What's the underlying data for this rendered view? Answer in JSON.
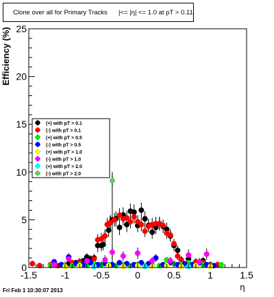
{
  "header": {
    "title": "Clone  over all for Primary Tracks",
    "title_overlap": "|<= |η| <= 1.0 at pT > 0.11"
  },
  "footer": {
    "timestamp": "Fri Feb  1 10:30:07 2013"
  },
  "colors": {
    "black": "#000000",
    "red": "#ff0000",
    "green": "#00ee00",
    "blue": "#0000ff",
    "yellow": "#ffff00",
    "magenta": "#ff00ff",
    "cyan": "#00ffff",
    "lightgreen": "#66cc66"
  },
  "chart_data": {
    "type": "scatter",
    "title": "Clone  over all for Primary Tracks",
    "xlabel": "η",
    "ylabel": "Efficiency (%)",
    "xlim": [
      -1.5,
      1.5
    ],
    "ylim": [
      0,
      25
    ],
    "xticks": [
      -1.5,
      -1,
      -0.5,
      0,
      0.5,
      1,
      1.5
    ],
    "xtick_labels": [
      "-1.5",
      "-1",
      "-0.5",
      "0",
      "0.5",
      "1",
      "1.5"
    ],
    "yticks": [
      0,
      5,
      10,
      15,
      20,
      25
    ],
    "ytick_labels": [
      "0",
      "5",
      "10",
      "15",
      "20",
      "25"
    ],
    "grid": false,
    "legend_position": "middle-left",
    "series": [
      {
        "name": "(+) with pT > 0.1",
        "color": "#000000",
        "x": [
          -1.05,
          -0.95,
          -0.85,
          -0.8,
          -0.75,
          -0.7,
          -0.65,
          -0.6,
          -0.55,
          -0.5,
          -0.475,
          -0.45,
          -0.4,
          -0.375,
          -0.35,
          -0.3,
          -0.25,
          -0.2,
          -0.15,
          -0.1,
          -0.05,
          0,
          0.05,
          0.1,
          0.15,
          0.2,
          0.25,
          0.3,
          0.35,
          0.4,
          0.45,
          0.5,
          0.55,
          0.6,
          0.7,
          0.8,
          0.9
        ],
        "y": [
          0.3,
          0.4,
          0.5,
          0.6,
          0.7,
          1.1,
          0.9,
          1.0,
          2.3,
          2.3,
          2.4,
          3.3,
          3.9,
          4.7,
          5.0,
          5.1,
          4.2,
          5.5,
          4.5,
          5.9,
          5.8,
          4.4,
          6.0,
          5.1,
          4.4,
          3.7,
          4.2,
          4.6,
          4.3,
          4.0,
          3.3,
          2.3,
          1.8,
          0.8,
          0.9,
          0.4,
          0.7
        ],
        "yerr": [
          0.3,
          0.3,
          0.3,
          0.3,
          0.3,
          0.4,
          0.4,
          0.4,
          0.7,
          0.6,
          0.6,
          0.7,
          0.7,
          0.8,
          5.0,
          0.8,
          0.8,
          0.8,
          0.8,
          0.8,
          0.8,
          0.7,
          0.8,
          0.8,
          0.7,
          0.7,
          0.7,
          0.7,
          0.7,
          0.7,
          0.6,
          0.6,
          0.5,
          0.4,
          0.4,
          0.3,
          0.4
        ]
      },
      {
        "name": "(-) with pT > 0.1",
        "color": "#ff0000",
        "x": [
          -1.45,
          -1.35,
          -1.2,
          -1.1,
          -0.9,
          -0.8,
          -0.7,
          -0.6,
          -0.55,
          -0.5,
          -0.45,
          -0.42,
          -0.38,
          -0.32,
          -0.25,
          -0.2,
          -0.15,
          -0.1,
          -0.05,
          0,
          0.05,
          0.1,
          0.15,
          0.2,
          0.25,
          0.3,
          0.35,
          0.4,
          0.45,
          0.5,
          0.55,
          0.6,
          0.8,
          0.9,
          1.0,
          1.1
        ],
        "y": [
          0.4,
          0.2,
          0.3,
          0.2,
          0.5,
          0.6,
          0.3,
          0.9,
          2.9,
          3.0,
          3.3,
          4.5,
          4.7,
          5.0,
          5.5,
          5.1,
          5.2,
          4.8,
          5.3,
          4.8,
          4.5,
          3.8,
          4.3,
          4.5,
          4.6,
          4.6,
          4.4,
          3.6,
          3.4,
          2.5,
          1.2,
          0.8,
          0.6,
          0.5,
          0.3,
          0.3
        ],
        "yerr": [
          0.3,
          0.3,
          0.3,
          0.3,
          0.3,
          0.4,
          0.3,
          0.5,
          0.6,
          0.6,
          0.6,
          0.7,
          0.7,
          0.7,
          0.7,
          0.7,
          0.7,
          0.7,
          0.7,
          0.7,
          0.7,
          0.6,
          0.6,
          0.7,
          0.7,
          0.7,
          0.6,
          0.6,
          0.6,
          0.5,
          0.4,
          0.4,
          0.4,
          0.3,
          0.3,
          0.3
        ]
      },
      {
        "name": "(+) with pT > 0.5",
        "color": "#00ee00",
        "x": [
          -1.2,
          -1.05,
          -0.9,
          -0.8,
          -0.7,
          -0.6,
          -0.5,
          -0.4,
          -0.3,
          -0.2,
          -0.1,
          0,
          0.1,
          0.2,
          0.3,
          0.4,
          0.5,
          0.6,
          0.7,
          0.8,
          0.9,
          1.0,
          1.15
        ],
        "y": [
          0.2,
          0.3,
          0.2,
          0.3,
          0.2,
          0.4,
          0.3,
          0.3,
          0.2,
          0.3,
          0.2,
          0.3,
          0.2,
          0.3,
          0.2,
          0.8,
          0.4,
          0.3,
          0.5,
          0.2,
          0.3,
          0.2,
          0.3
        ],
        "yerr": [
          0.2,
          0.2,
          0.2,
          0.2,
          0.2,
          0.2,
          0.2,
          0.2,
          0.2,
          0.2,
          0.2,
          0.2,
          0.2,
          0.2,
          0.2,
          0.3,
          0.2,
          0.2,
          0.2,
          0.2,
          0.2,
          0.2,
          0.2
        ]
      },
      {
        "name": "(-) with pT > 0.5",
        "color": "#0000ff",
        "x": [
          -1.15,
          -1.05,
          -0.95,
          -0.85,
          -0.75,
          -0.65,
          -0.55,
          -0.45,
          -0.35,
          -0.25,
          -0.15,
          -0.05,
          0.05,
          0.15,
          0.25,
          0.35,
          0.45,
          0.55,
          0.65,
          0.75,
          0.85,
          0.95,
          1.05
        ],
        "y": [
          0.6,
          0.3,
          1.1,
          0.4,
          0.3,
          0.5,
          0.3,
          0.4,
          0.3,
          0.5,
          0.4,
          0.3,
          0.5,
          0.4,
          1.0,
          0.3,
          0.5,
          0.3,
          0.4,
          0.3,
          0.5,
          0.3,
          0.2
        ],
        "yerr": [
          0.3,
          0.2,
          0.4,
          0.2,
          0.2,
          0.3,
          0.2,
          0.2,
          0.2,
          0.3,
          0.2,
          0.2,
          0.3,
          0.2,
          0.4,
          0.2,
          0.3,
          0.2,
          0.2,
          0.2,
          0.3,
          0.2,
          0.2
        ]
      },
      {
        "name": "(+) with pT > 1.0",
        "color": "#ffff00",
        "x": [
          -1.0,
          -0.8,
          -0.6,
          -0.4,
          -0.2,
          0,
          0.2,
          0.4,
          0.6,
          0.8,
          1.0
        ],
        "y": [
          0.1,
          0.2,
          0.1,
          0.2,
          0.1,
          0.2,
          0.1,
          0.2,
          0.1,
          0.2,
          0.1
        ],
        "yerr": [
          0.1,
          0.1,
          0.1,
          0.1,
          0.1,
          0.1,
          0.1,
          0.1,
          0.1,
          0.1,
          0.1
        ]
      },
      {
        "name": "(-) with pT > 1.0",
        "color": "#ff00ff",
        "x": [
          -1.15,
          -0.95,
          -0.7,
          -0.45,
          -0.35,
          -0.2,
          0,
          0.2,
          0.45,
          0.7,
          0.85,
          0.95
        ],
        "y": [
          0.3,
          0.9,
          0.7,
          0.8,
          1.6,
          1.2,
          1.5,
          0.7,
          0.7,
          1.3,
          0.6,
          1.4
        ],
        "yerr": [
          0.3,
          0.5,
          0.4,
          0.5,
          0.6,
          0.5,
          0.6,
          0.4,
          0.4,
          0.6,
          0.4,
          0.6
        ]
      },
      {
        "name": "(+) with pT > 2.0",
        "color": "#00ffff",
        "x": [
          -0.6,
          0.1,
          0.7
        ],
        "y": [
          0.1,
          0.1,
          0.1
        ],
        "yerr": [
          0.1,
          0.1,
          0.1
        ]
      },
      {
        "name": "(-) with pT > 2.0",
        "color": "#66cc66",
        "x": [
          -0.35
        ],
        "y": [
          9.1
        ],
        "yerr": [
          0.6
        ]
      }
    ]
  }
}
